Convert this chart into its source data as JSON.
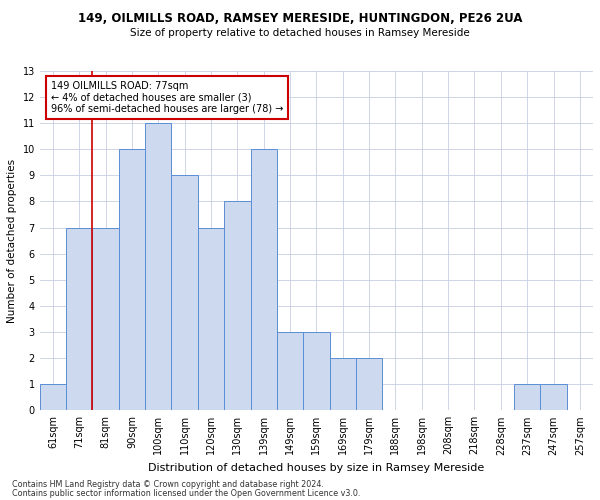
{
  "title1": "149, OILMILLS ROAD, RAMSEY MERESIDE, HUNTINGDON, PE26 2UA",
  "title2": "Size of property relative to detached houses in Ramsey Mereside",
  "xlabel": "Distribution of detached houses by size in Ramsey Mereside",
  "ylabel": "Number of detached properties",
  "footnote1": "Contains HM Land Registry data © Crown copyright and database right 2024.",
  "footnote2": "Contains public sector information licensed under the Open Government Licence v3.0.",
  "categories": [
    "61sqm",
    "71sqm",
    "81sqm",
    "90sqm",
    "100sqm",
    "110sqm",
    "120sqm",
    "130sqm",
    "139sqm",
    "149sqm",
    "159sqm",
    "169sqm",
    "179sqm",
    "188sqm",
    "198sqm",
    "208sqm",
    "218sqm",
    "228sqm",
    "237sqm",
    "247sqm",
    "257sqm"
  ],
  "values": [
    1,
    7,
    7,
    10,
    11,
    9,
    7,
    8,
    10,
    3,
    3,
    2,
    2,
    0,
    0,
    0,
    0,
    0,
    1,
    1,
    0
  ],
  "bar_color": "#ccd9ee",
  "bar_edge_color": "#5b8ed6",
  "grid_color": "#c8cfe0",
  "bg_color": "#ffffff",
  "red_line_x": 1.5,
  "annotation_text": "149 OILMILLS ROAD: 77sqm\n← 4% of detached houses are smaller (3)\n96% of semi-detached houses are larger (78) →",
  "annotation_box_color": "#ffffff",
  "annotation_box_edge": "#cc0000",
  "red_line_color": "#cc0000",
  "ylim": [
    0,
    13
  ],
  "yticks": [
    0,
    1,
    2,
    3,
    4,
    5,
    6,
    7,
    8,
    9,
    10,
    11,
    12,
    13
  ],
  "title1_fontsize": 8.5,
  "title2_fontsize": 7.5,
  "xlabel_fontsize": 8.0,
  "ylabel_fontsize": 7.5,
  "tick_fontsize": 7.0,
  "annot_fontsize": 7.0,
  "footnote_fontsize": 5.8
}
